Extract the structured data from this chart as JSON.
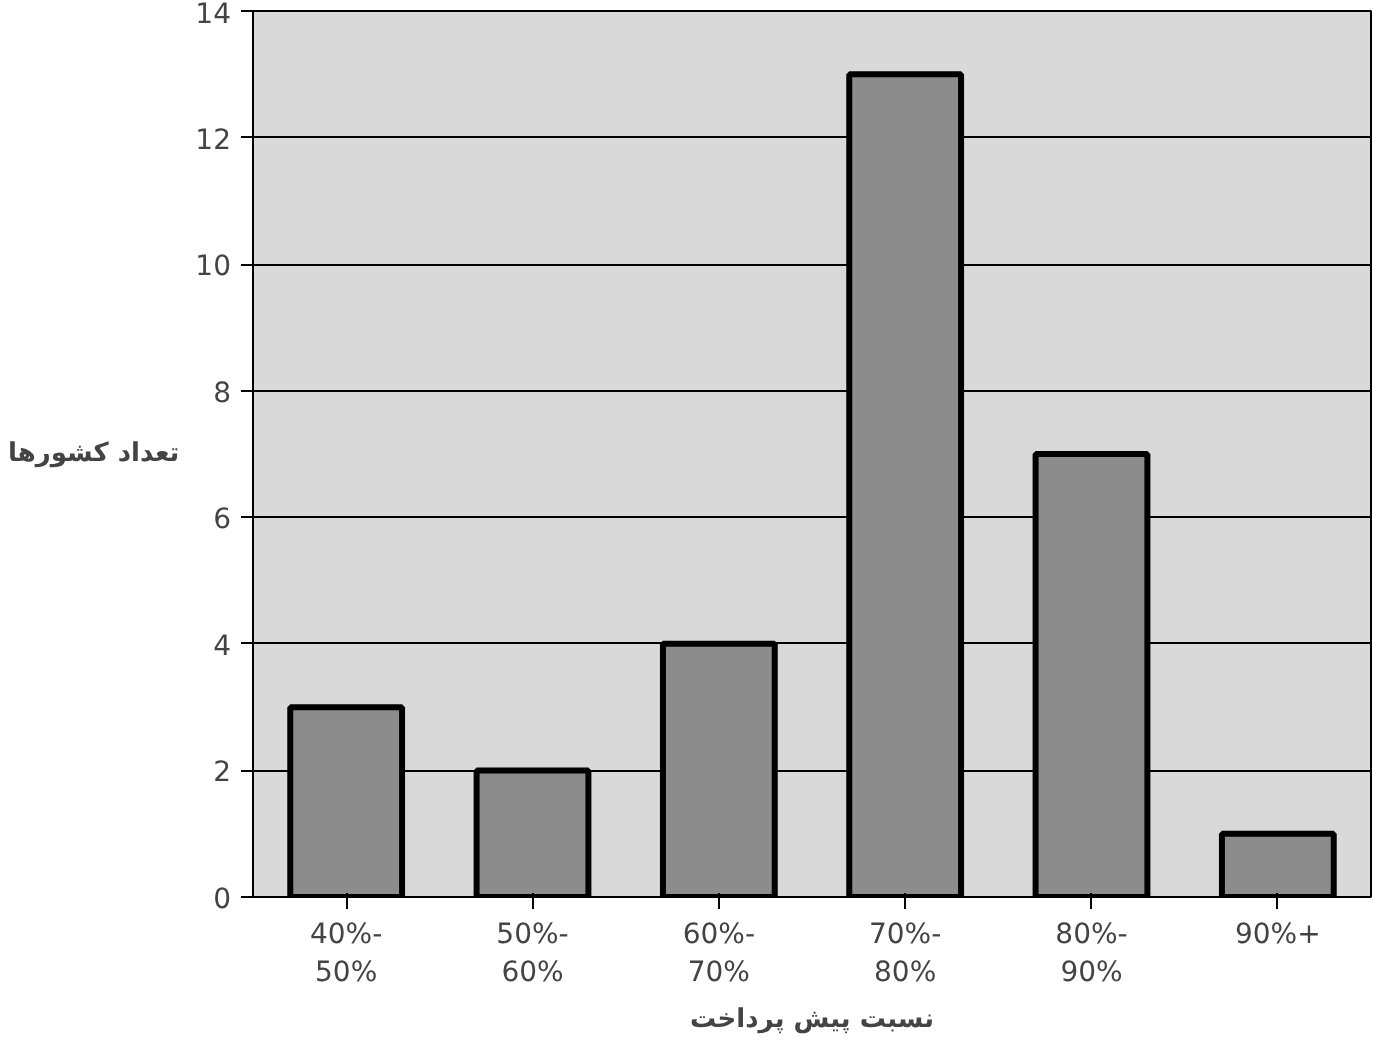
{
  "chart_data": {
    "type": "bar",
    "xlabel": "نسبت پیش پرداخت",
    "ylabel": "تعداد کشورها",
    "categories": [
      "40%-\n50%",
      "50%-\n60%",
      "60%-\n70%",
      "70%-\n80%",
      "80%-\n90%",
      "90%+"
    ],
    "values": [
      3,
      2,
      4,
      13,
      7,
      1
    ],
    "color": "#8c8c8c",
    "ylim": [
      0,
      14
    ],
    "yticks": [
      0,
      2,
      4,
      6,
      8,
      10,
      12,
      14
    ],
    "grid": "y"
  }
}
